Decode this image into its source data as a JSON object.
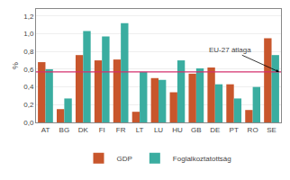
{
  "chart_data": {
    "type": "bar",
    "categories": [
      "AT",
      "BG",
      "DK",
      "FI",
      "FR",
      "LT",
      "LU",
      "HU",
      "GB",
      "DE",
      "PT",
      "RO",
      "SE"
    ],
    "series": [
      {
        "name": "GDP",
        "color": "#C8562C",
        "values": [
          0.68,
          0.15,
          0.76,
          0.7,
          0.71,
          0.12,
          0.5,
          0.34,
          0.55,
          0.62,
          0.43,
          0.14,
          0.95
        ]
      },
      {
        "name": "Foglalkoztatottság",
        "color": "#3AADA0",
        "values": [
          0.6,
          0.27,
          1.03,
          0.97,
          1.12,
          0.57,
          0.48,
          0.7,
          0.61,
          0.43,
          0.27,
          0.4,
          0.76
        ]
      }
    ],
    "reference_lines": [
      {
        "value": 0.57,
        "label": "EU‑27 átlaga",
        "color": "#D4306E"
      }
    ],
    "ylabel": "%",
    "ylim": [
      0,
      1.28
    ],
    "yticks": [
      {
        "value": 0.0,
        "label": "0,0"
      },
      {
        "value": 0.2,
        "label": "0,2"
      },
      {
        "value": 0.4,
        "label": "0,4"
      },
      {
        "value": 0.6,
        "label": "0,6"
      },
      {
        "value": 0.8,
        "label": "0,8"
      },
      {
        "value": 1.0,
        "label": "1,0"
      },
      {
        "value": 1.2,
        "label": "1,2"
      }
    ],
    "grid": true,
    "legend": "bottom"
  }
}
